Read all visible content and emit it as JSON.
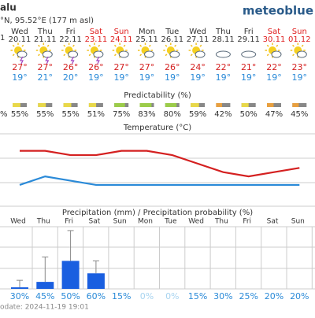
{
  "header": {
    "location": "alu",
    "coords": "°N, 95.52°E (177 m asl)",
    "logo": "meteoblue",
    "partial_date": "1"
  },
  "days": {
    "weekdays": [
      "Wed",
      "Thu",
      "Fri",
      "Sat",
      "Sun",
      "Mon",
      "Tue",
      "Wed",
      "Thu",
      "Fri",
      "Sat",
      "Sun"
    ],
    "dates": [
      "20.11",
      "21.11",
      "22.11",
      "23.11",
      "24.11",
      "25.11",
      "26.11",
      "27.11",
      "28.11",
      "29.11",
      "30.11",
      "01.12"
    ],
    "weekend_color": "#e02020",
    "weekday_color": "#333333",
    "weekend": [
      false,
      false,
      false,
      true,
      true,
      false,
      false,
      false,
      false,
      false,
      true,
      true
    ]
  },
  "chart_data": [
    {
      "type": "line",
      "title": "Temperature (°C)",
      "ylim": [
        14,
        31
      ],
      "series": [
        {
          "name": "max",
          "color": "#d42020",
          "values": [
            27,
            27,
            26,
            26,
            27,
            27,
            26,
            24,
            22,
            21,
            22,
            23
          ],
          "value_labels": [
            "27°",
            "27°",
            "26°",
            "26°",
            "27°",
            "27°",
            "26°",
            "24°",
            "22°",
            "21°",
            "22°",
            "23°"
          ]
        },
        {
          "name": "min",
          "color": "#2a8ad8",
          "values": [
            19,
            21,
            20,
            19,
            19,
            19,
            19,
            19,
            19,
            19,
            19,
            19
          ],
          "value_labels": [
            "19°",
            "21°",
            "20°",
            "19°",
            "19°",
            "19°",
            "19°",
            "19°",
            "19°",
            "19°",
            "19°",
            "19°"
          ]
        }
      ]
    },
    {
      "type": "meter",
      "title": "Predictability (%)",
      "partial_label": "%",
      "values": [
        55,
        55,
        55,
        51,
        75,
        83,
        80,
        59,
        42,
        50,
        47,
        45
      ],
      "value_labels": [
        "55%",
        "55%",
        "55%",
        "51%",
        "75%",
        "83%",
        "80%",
        "59%",
        "42%",
        "50%",
        "47%",
        "45%"
      ],
      "colors": [
        "#e8d84a",
        "#e8d84a",
        "#e8d84a",
        "#e8d84a",
        "#9ccc4a",
        "#9ccc4a",
        "#9ccc4a",
        "#e8d84a",
        "#e8a040",
        "#e8d84a",
        "#e8a040",
        "#e8a040"
      ]
    },
    {
      "type": "bar",
      "title": "Precipitation (mm) / Precipitation probability (%)",
      "ylim": [
        0,
        8
      ],
      "color": "#1a5fe0",
      "categories": [
        "Wed",
        "Thu",
        "Fri",
        "Sat",
        "Sun",
        "Mon",
        "Tue",
        "Wed",
        "Thu",
        "Fri",
        "Sat",
        "Sun"
      ],
      "values": [
        0.2,
        0.9,
        3.6,
        2.0,
        0,
        0,
        0,
        0,
        0,
        0,
        0,
        0
      ],
      "error": [
        0.9,
        3.2,
        3.9,
        1.6,
        0,
        0,
        0,
        0,
        0,
        0,
        0,
        0
      ],
      "probability": [
        30,
        45,
        50,
        60,
        15,
        0,
        0,
        15,
        30,
        25,
        20,
        20
      ],
      "probability_labels": [
        "30%",
        "45%",
        "50%",
        "60%",
        "15%",
        "0%",
        "0%",
        "15%",
        "30%",
        "25%",
        "20%",
        "20%"
      ],
      "probability_colors": [
        "#2a8ad8",
        "#2a8ad8",
        "#2a8ad8",
        "#2a8ad8",
        "#2a8ad8",
        "#a8d4f0",
        "#a8d4f0",
        "#2a8ad8",
        "#2a8ad8",
        "#2a8ad8",
        "#2a8ad8",
        "#2a8ad8"
      ]
    }
  ],
  "footer": "odate: 2024-11-19 19:01"
}
